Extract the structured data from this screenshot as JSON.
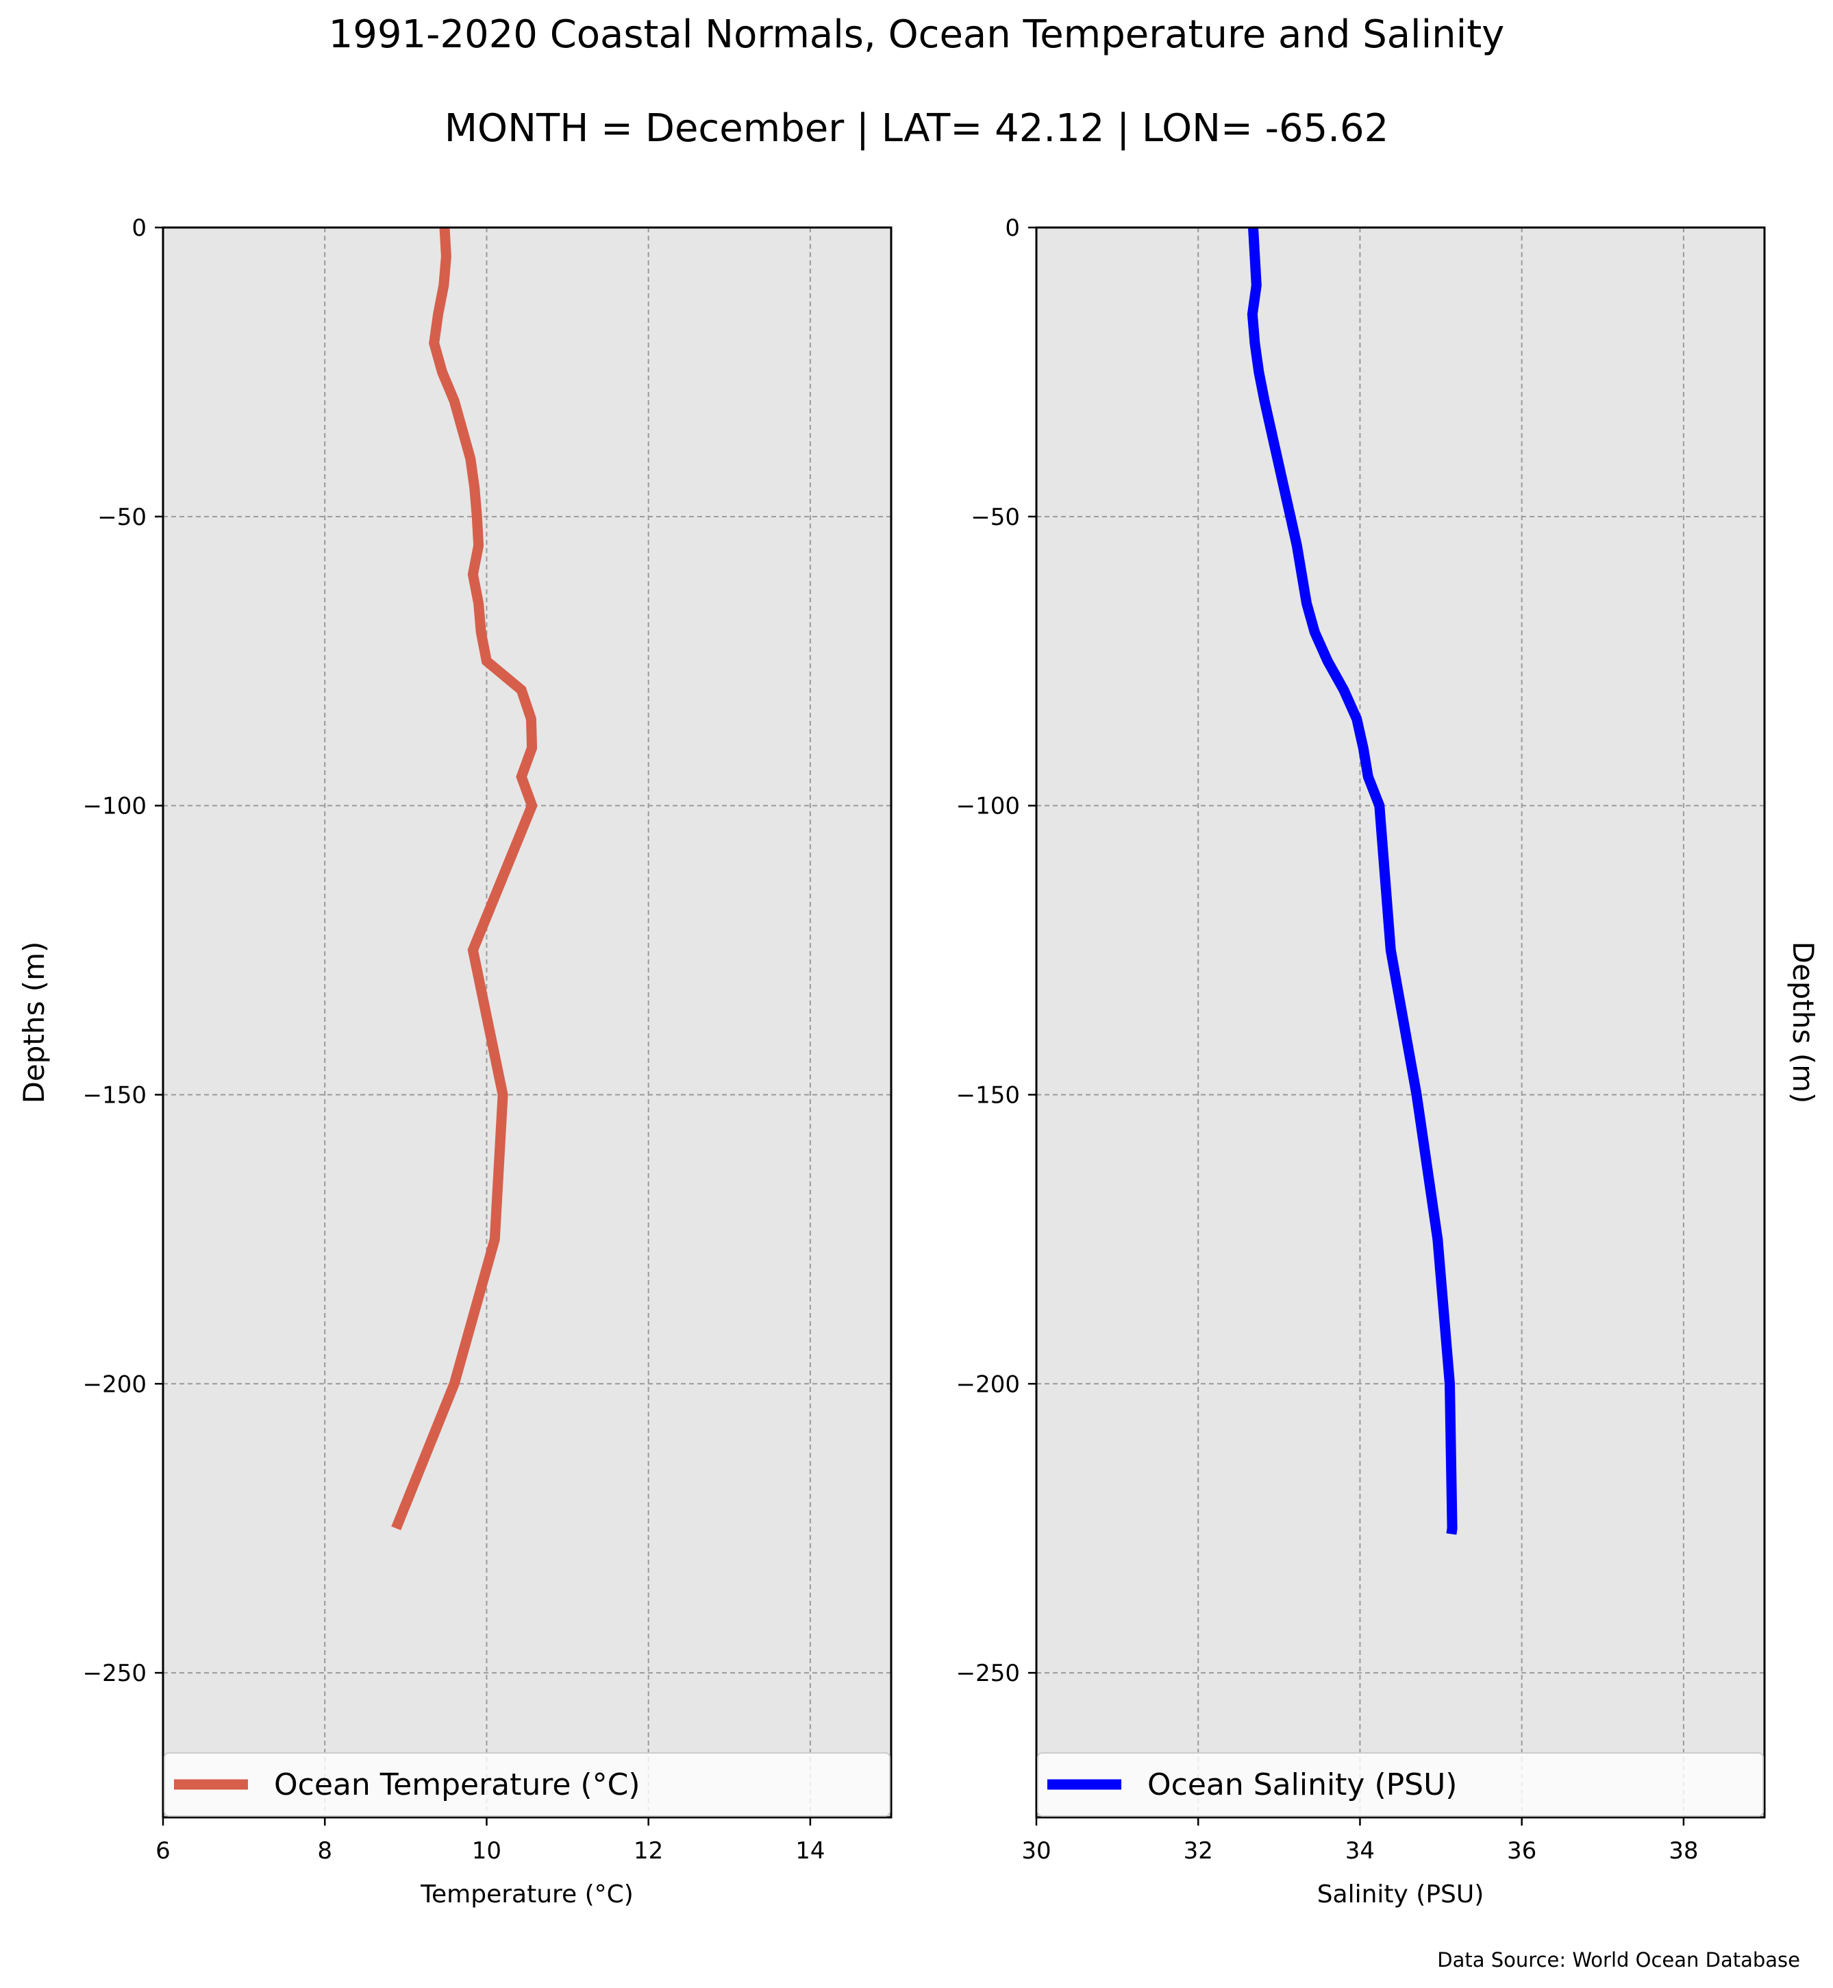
{
  "figure": {
    "title": "1991-2020 Coastal Normals, Ocean Temperature and Salinity",
    "subtitle": "MONTH = December | LAT= 42.12 | LON= -65.62",
    "source_note": "Data Source: World Ocean Database"
  },
  "chart_data": [
    {
      "type": "line",
      "orientation": "profile (x = value, y = depth)",
      "xlabel": "Temperature ($^\\circ$C)",
      "ylabel": "Depths (m)",
      "xlim": [
        6,
        15
      ],
      "ylim": [
        -275,
        0
      ],
      "xticks": [
        6,
        8,
        10,
        12,
        14
      ],
      "xtick_labels": [
        "6",
        "8",
        "10",
        "12",
        "14"
      ],
      "yticks": [
        0,
        -50,
        -100,
        -150,
        -200,
        -250
      ],
      "ytick_labels": [
        "0",
        "−50",
        "−100",
        "−150",
        "−200",
        "−250"
      ],
      "grid": true,
      "legend_position": "bottom",
      "series": [
        {
          "name": "Ocean Temperature ($^\\circ$C)",
          "color": "#d65f4c",
          "x": [
            9.48,
            9.5,
            9.47,
            9.4,
            9.35,
            9.45,
            9.6,
            9.7,
            9.8,
            9.85,
            9.88,
            9.9,
            9.83,
            9.9,
            9.93,
            10.0,
            10.43,
            10.55,
            10.56,
            10.43,
            10.56,
            9.83,
            10.2,
            10.1,
            9.6,
            8.88
          ],
          "y": [
            0,
            -5,
            -10,
            -15,
            -20,
            -25,
            -30,
            -35,
            -40,
            -45,
            -50,
            -55,
            -60,
            -65,
            -70,
            -75,
            -80,
            -85,
            -90,
            -95,
            -100,
            -125,
            -150,
            -175,
            -200,
            -225
          ]
        }
      ]
    },
    {
      "type": "line",
      "orientation": "profile (x = value, y = depth)",
      "xlabel": "Salinity (PSU)",
      "ylabel": "Depths (m)",
      "xlim": [
        30,
        39
      ],
      "ylim": [
        -275,
        0
      ],
      "xticks": [
        30,
        32,
        34,
        36,
        38
      ],
      "xtick_labels": [
        "30",
        "32",
        "34",
        "36",
        "38"
      ],
      "yticks": [
        0,
        -50,
        -100,
        -150,
        -200,
        -250
      ],
      "ytick_labels": [
        "0",
        "−50",
        "−100",
        "−150",
        "−200",
        "−250"
      ],
      "grid": true,
      "legend_position": "bottom",
      "series": [
        {
          "name": "Ocean Salinity (PSU)",
          "color": "#0000ff",
          "x": [
            32.68,
            32.7,
            32.72,
            32.67,
            32.7,
            32.75,
            32.82,
            32.9,
            32.98,
            33.06,
            33.14,
            33.22,
            33.28,
            33.34,
            33.44,
            33.6,
            33.8,
            33.96,
            34.04,
            34.1,
            34.24,
            34.38,
            34.7,
            34.96,
            35.11,
            35.14,
            35.13
          ],
          "y": [
            0,
            -5,
            -10,
            -15,
            -20,
            -25,
            -30,
            -35,
            -40,
            -45,
            -50,
            -55,
            -60,
            -65,
            -70,
            -75,
            -80,
            -85,
            -90,
            -95,
            -100,
            -125,
            -150,
            -175,
            -200,
            -225,
            -226
          ]
        }
      ]
    }
  ]
}
